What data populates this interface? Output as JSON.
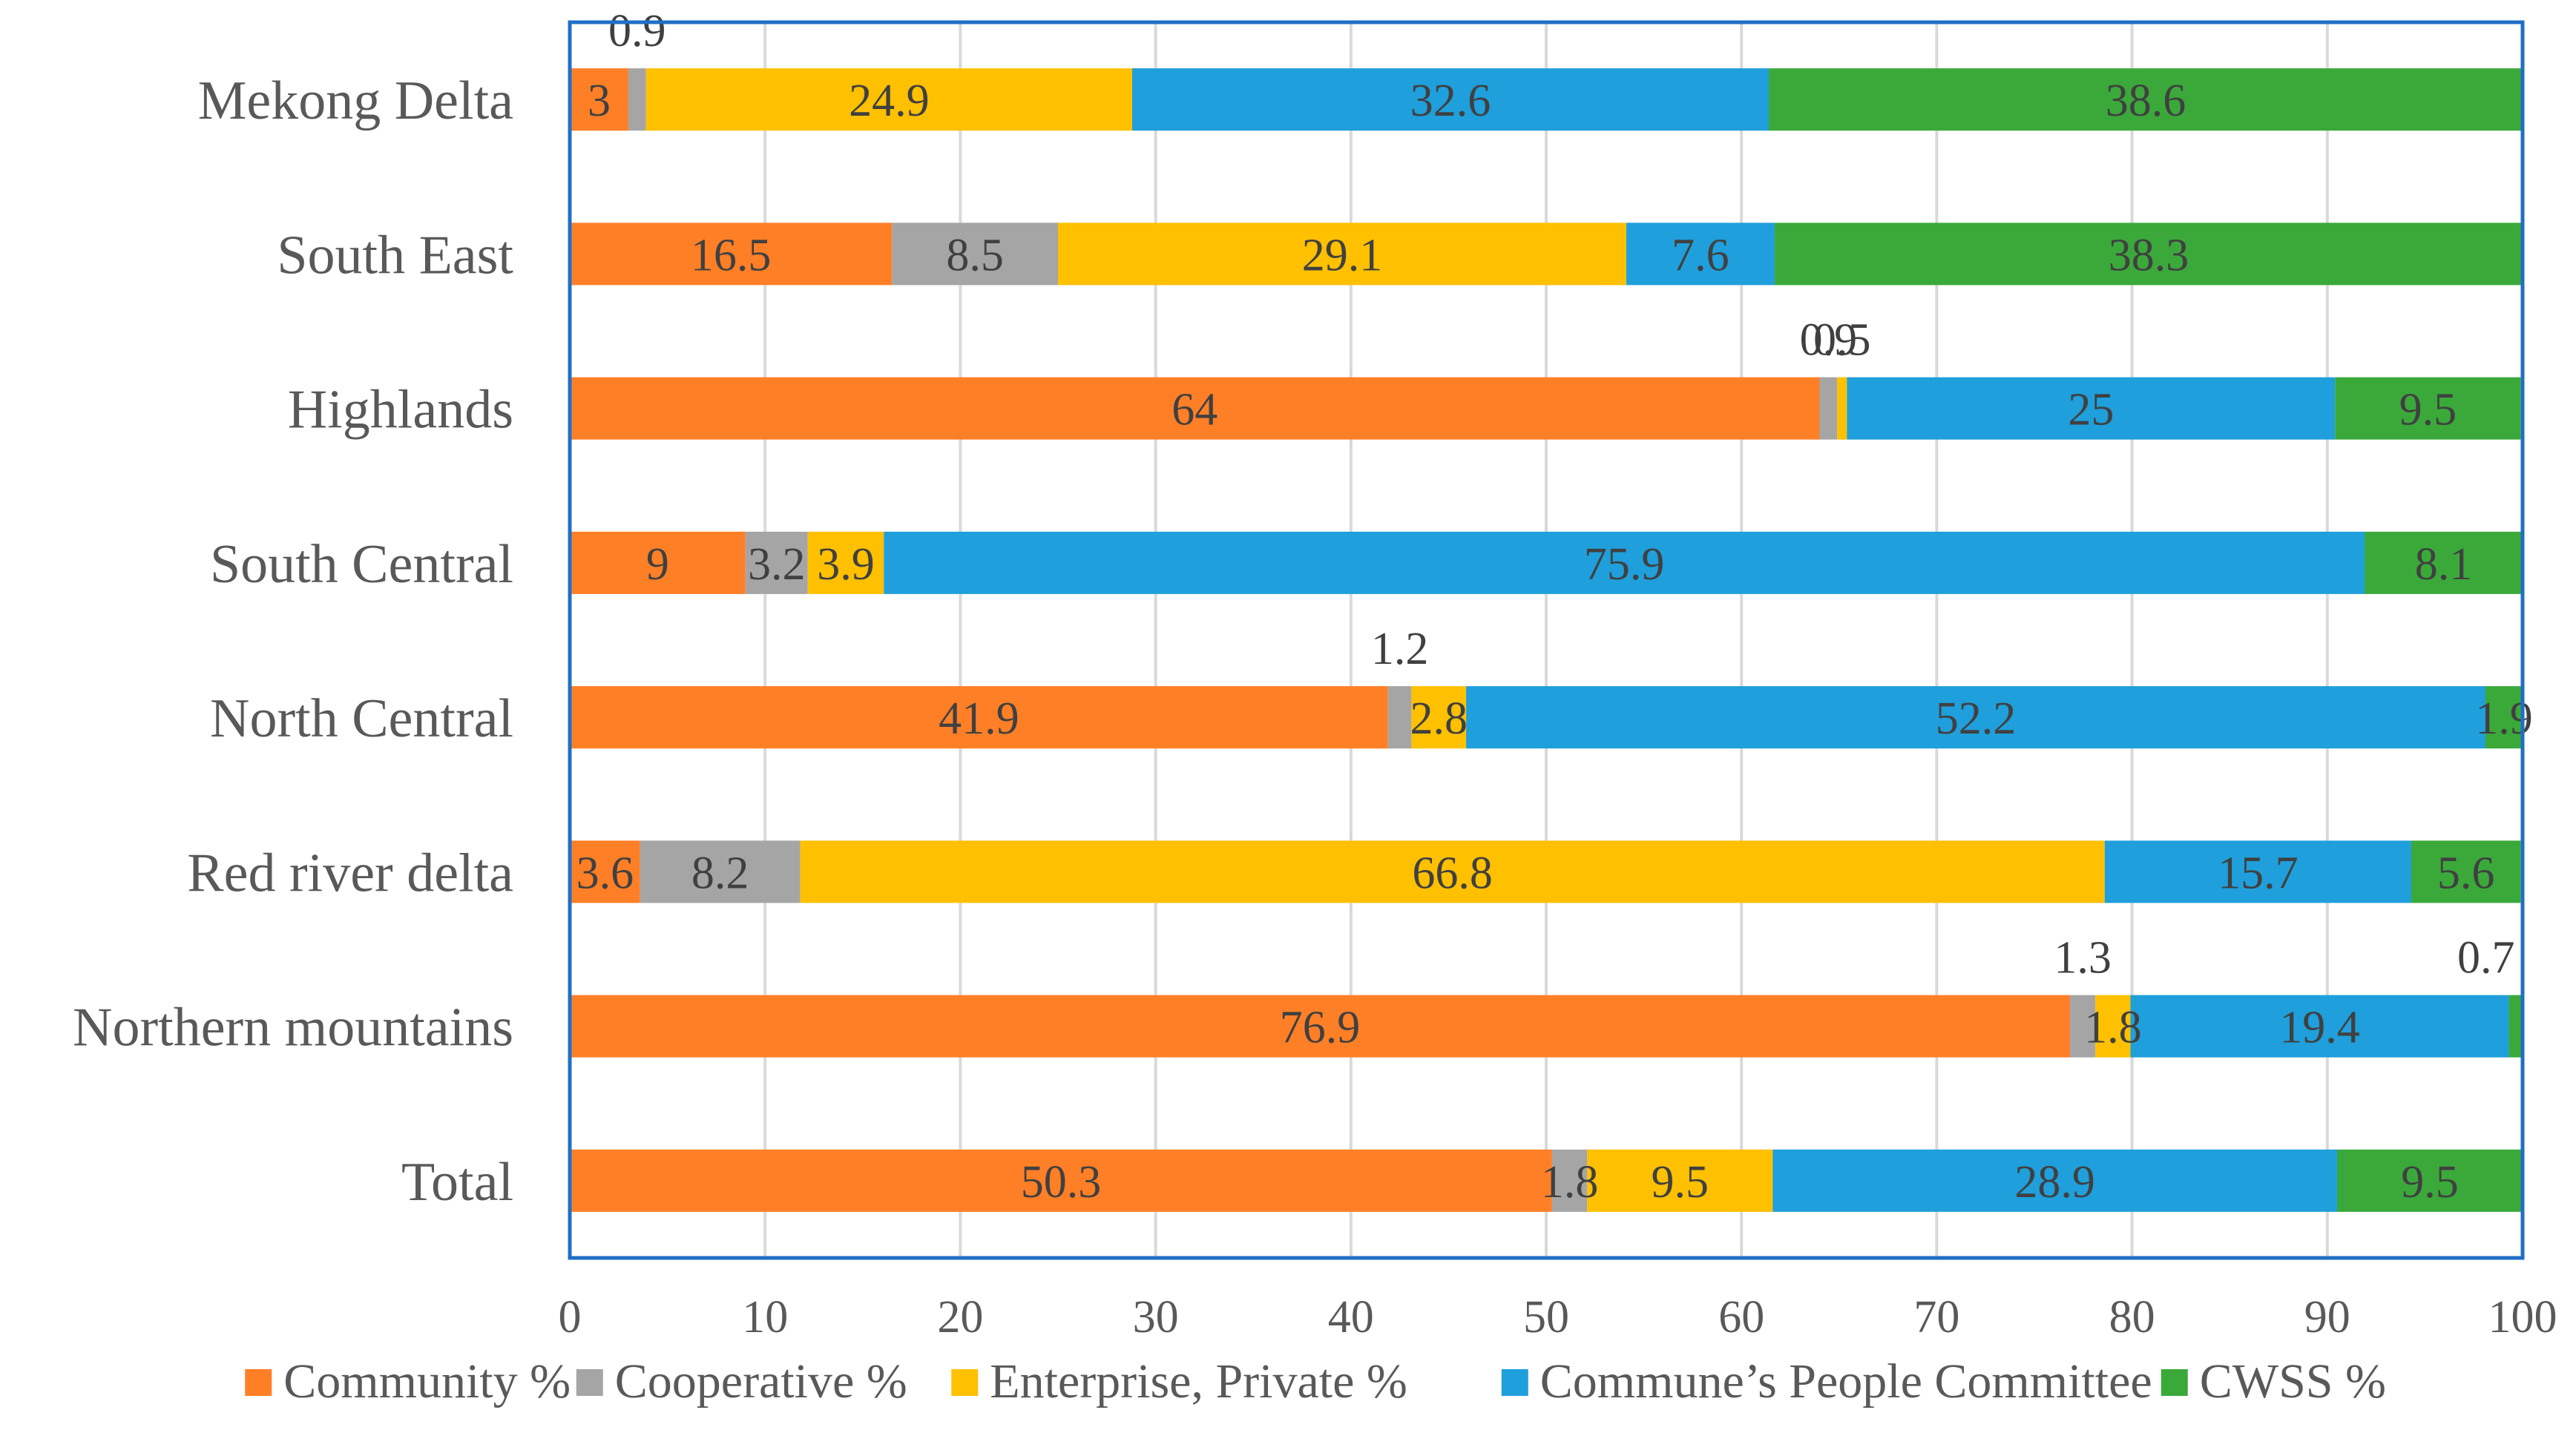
{
  "chart_data": {
    "type": "bar",
    "orientation": "horizontal",
    "stacked": true,
    "title": "",
    "xlabel": "",
    "ylabel": "",
    "xlim": [
      0,
      100
    ],
    "x_ticks": [
      0,
      10,
      20,
      30,
      40,
      50,
      60,
      70,
      80,
      90,
      100
    ],
    "grid": true,
    "legend_position": "bottom",
    "categories": [
      "Mekong Delta",
      "South East",
      "Highlands",
      "South Central",
      "North Central",
      "Red river delta",
      "Northern mountains",
      "Total"
    ],
    "series": [
      {
        "name": "Community %",
        "color": "#ff7f27",
        "values": [
          3,
          16.5,
          64,
          9,
          41.9,
          3.6,
          76.9,
          50.3
        ]
      },
      {
        "name": "Cooperative %",
        "color": "#a5a5a5",
        "values": [
          0.9,
          8.5,
          0.9,
          3.2,
          1.2,
          8.2,
          1.3,
          1.8
        ]
      },
      {
        "name": "Enterprise, Private %",
        "color": "#ffc000",
        "values": [
          24.9,
          29.1,
          0.5,
          3.9,
          2.8,
          66.8,
          1.8,
          9.5
        ]
      },
      {
        "name": "Commune’s People Committee",
        "color": "#1f9fdb",
        "values": [
          32.6,
          7.6,
          25,
          75.9,
          52.2,
          15.7,
          19.4,
          28.9
        ]
      },
      {
        "name": "CWSS %",
        "color": "#3aa93a",
        "values": [
          38.6,
          38.3,
          9.5,
          8.1,
          1.9,
          5.6,
          0.7,
          9.5
        ]
      }
    ]
  }
}
